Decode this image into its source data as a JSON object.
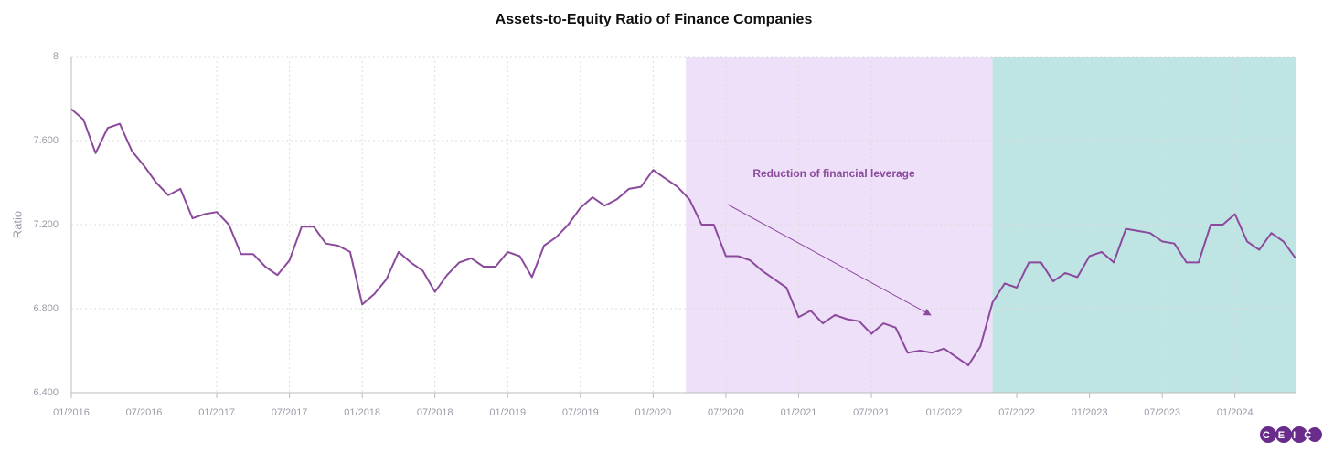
{
  "chart_data": {
    "type": "line",
    "title": "Assets-to-Equity Ratio of Finance Companies",
    "y_label": "Ratio",
    "annotation": "Reduction of financial leverage",
    "logo": "CEIC",
    "categories": [
      "01/2016",
      null,
      null,
      null,
      null,
      null,
      "07/2016",
      null,
      null,
      null,
      null,
      null,
      "01/2017",
      null,
      null,
      null,
      null,
      null,
      "07/2017",
      null,
      null,
      null,
      null,
      null,
      "01/2018",
      null,
      null,
      null,
      null,
      null,
      "07/2018",
      null,
      null,
      null,
      null,
      null,
      "01/2019",
      null,
      null,
      null,
      null,
      null,
      "07/2019",
      null,
      null,
      null,
      null,
      null,
      "01/2020",
      null,
      null,
      null,
      null,
      null,
      "07/2020",
      null,
      null,
      null,
      null,
      null,
      "01/2021",
      null,
      null,
      null,
      null,
      null,
      "07/2021",
      null,
      null,
      null,
      null,
      null,
      "01/2022",
      null,
      null,
      null,
      null,
      null,
      "07/2022",
      null,
      null,
      null,
      null,
      null,
      "01/2023",
      null,
      null,
      null,
      null,
      null,
      "07/2023",
      null,
      null,
      null,
      null,
      null,
      "01/2024",
      null,
      null,
      null,
      null,
      null
    ],
    "series": [
      {
        "color": "#8b4a9c",
        "values": [
          7.75,
          7.7,
          7.54,
          7.66,
          7.68,
          7.55,
          7.48,
          7.4,
          7.34,
          7.37,
          7.23,
          7.25,
          7.26,
          7.2,
          7.06,
          7.06,
          7.0,
          6.96,
          7.03,
          7.19,
          7.19,
          7.11,
          7.1,
          7.07,
          6.82,
          6.87,
          6.94,
          7.07,
          7.02,
          6.98,
          6.88,
          6.96,
          7.02,
          7.04,
          7.0,
          7.0,
          7.07,
          7.05,
          6.95,
          7.1,
          7.14,
          7.2,
          7.28,
          7.33,
          7.29,
          7.32,
          7.37,
          7.38,
          7.46,
          7.42,
          7.38,
          7.32,
          7.2,
          7.2,
          7.05,
          7.05,
          7.03,
          6.98,
          6.94,
          6.9,
          6.76,
          6.79,
          6.73,
          6.77,
          6.75,
          6.74,
          6.68,
          6.73,
          6.71,
          6.59,
          6.6,
          6.59,
          6.61,
          6.57,
          6.53,
          6.62,
          6.83,
          6.92,
          6.9,
          7.02,
          7.02,
          6.93,
          6.97,
          6.95,
          7.05,
          7.07,
          7.02,
          7.18,
          7.17,
          7.16,
          7.12,
          7.11,
          7.02,
          7.02,
          7.2,
          7.2,
          7.25,
          7.12,
          7.08,
          7.16,
          7.12,
          7.04
        ]
      }
    ],
    "bands": [
      {
        "start": 50.7,
        "end": 76,
        "color": "#ede0f8"
      },
      {
        "start": 76,
        "end": 101,
        "color": "#bfe4e4"
      }
    ],
    "ylim": [
      6.4,
      8
    ],
    "yticks": [
      {
        "value": 6.4,
        "label": "6.400"
      },
      {
        "value": 6.8,
        "label": "6.800"
      },
      {
        "value": 7.2,
        "label": "7.200"
      },
      {
        "value": 7.6,
        "label": "7.600"
      },
      8
    ],
    "grid": true
  }
}
